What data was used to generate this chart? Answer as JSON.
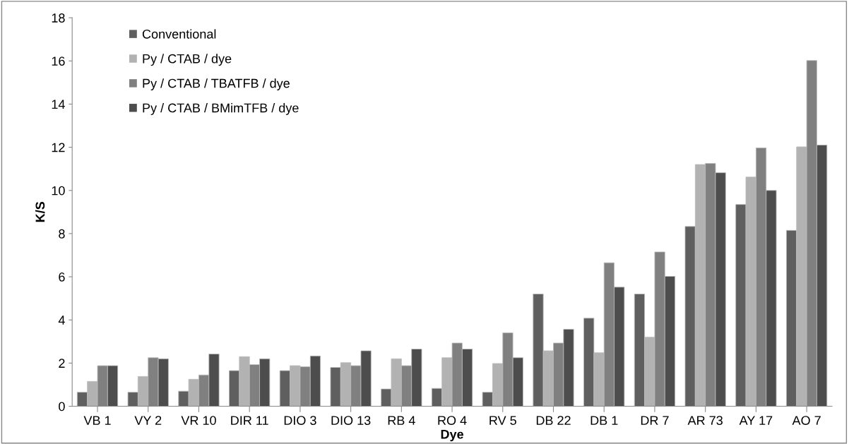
{
  "chart_data": {
    "type": "bar",
    "xlabel": "Dye",
    "ylabel": "K/S",
    "categories": [
      "VB 1",
      "VY 2",
      "VR 10",
      "DIR 11",
      "DIO 3",
      "DIO 13",
      "RB 4",
      "RO 4",
      "RV 5",
      "DB 22",
      "DB 1",
      "DR 7",
      "AR 73",
      "AY 17",
      "AO 7"
    ],
    "series": [
      {
        "name": "Conventional",
        "color": "#5f5f5f",
        "values": [
          0.65,
          0.65,
          0.7,
          1.65,
          1.65,
          1.8,
          0.8,
          0.83,
          0.65,
          5.2,
          4.08,
          5.2,
          8.33,
          9.35,
          8.15
        ]
      },
      {
        "name": "Py / CTAB / dye",
        "color": "#b2b2b2",
        "values": [
          1.15,
          1.38,
          1.25,
          2.3,
          1.88,
          2.02,
          2.2,
          2.25,
          1.98,
          2.57,
          2.48,
          3.2,
          11.2,
          10.62,
          12.02
        ]
      },
      {
        "name": "Py / CTAB / TBATFB / dye",
        "color": "#808080",
        "values": [
          1.88,
          2.25,
          1.45,
          1.93,
          1.83,
          1.88,
          1.88,
          2.93,
          3.4,
          2.93,
          6.65,
          7.15,
          11.25,
          11.97,
          16.02
        ]
      },
      {
        "name": "Py / CTAB / BMimTFB / dye",
        "color": "#4d4d4d",
        "values": [
          1.88,
          2.2,
          2.42,
          2.2,
          2.33,
          2.57,
          2.65,
          2.65,
          2.25,
          3.57,
          5.52,
          6.02,
          10.82,
          10.0,
          12.1
        ]
      }
    ],
    "ylim": [
      0,
      18
    ],
    "yticks": [
      0,
      2,
      4,
      6,
      8,
      10,
      12,
      14,
      16,
      18
    ],
    "grid": false,
    "legend": "top left"
  }
}
